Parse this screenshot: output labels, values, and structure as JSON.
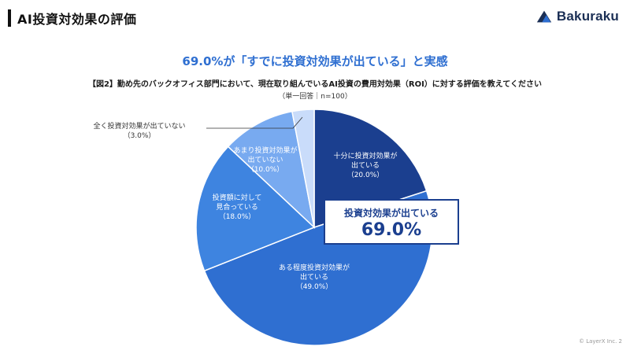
{
  "slide": {
    "title": "AI投資対効果の評価",
    "logo_text": "Bakuraku",
    "headline": "69.0%が「すでに投資対効果が出ている」と実感",
    "question": "【図2】勤め先のバックオフィス部門において、現在取り組んでいるAI投資の費用対効果（ROI）に対する評価を教えてください",
    "sample": "（単一回答｜n=100）",
    "callout_label": "投資対効果が出ている",
    "callout_value": "69.0%",
    "footer": "© LayerX Inc.   2"
  },
  "colors": {
    "accent": "#2f6fd1",
    "callout": "#1b3f8f",
    "slices": [
      "#1b3f8f",
      "#2f6fd1",
      "#3e84e0",
      "#78aaf0",
      "#c9dcfa"
    ]
  },
  "chart_data": {
    "type": "pie",
    "title": "",
    "start": "12 o'clock, clockwise",
    "slices": [
      {
        "label": "十分に投資対効果が出ている",
        "lines": [
          "十分に投資対効果が",
          "出ている"
        ],
        "pct_label": "（20.0%）",
        "value": 20.0
      },
      {
        "label": "ある程度投資対効果が出ている",
        "lines": [
          "ある程度投資対効果が",
          "出ている"
        ],
        "pct_label": "（49.0%）",
        "value": 49.0
      },
      {
        "label": "投資額に対して見合っている",
        "lines": [
          "投資額に対して",
          "見合っている"
        ],
        "pct_label": "（18.0%）",
        "value": 18.0
      },
      {
        "label": "あまり投資対効果が出ていない",
        "lines": [
          "あまり投資対効果が",
          "出ていない"
        ],
        "pct_label": "（10.0%）",
        "value": 10.0
      },
      {
        "label": "全く投資対効果が出ていない",
        "lines": [
          "全く投資対効果が出ていない"
        ],
        "pct_label": "（3.0%）",
        "value": 3.0
      }
    ]
  }
}
